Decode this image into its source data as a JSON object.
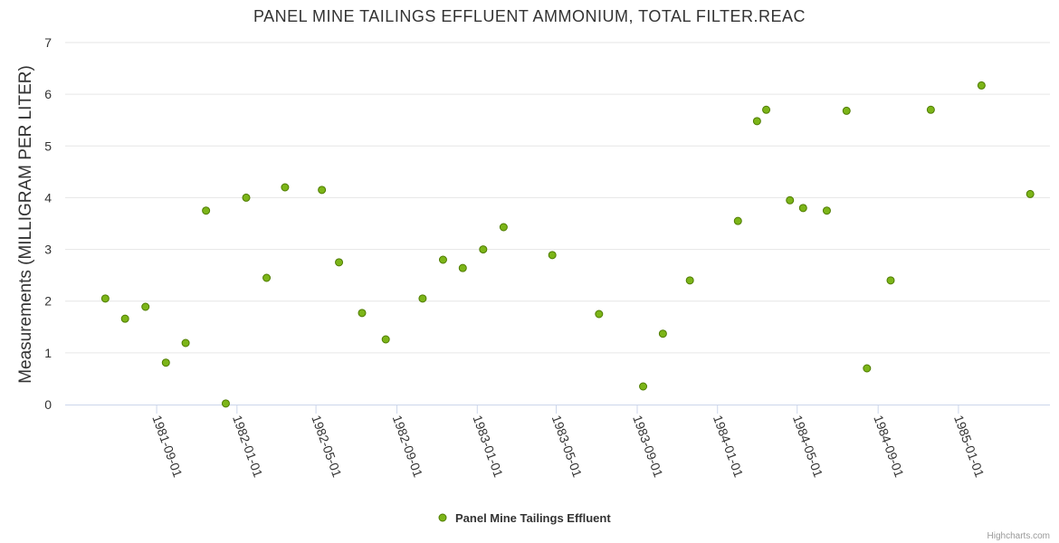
{
  "chart_data": {
    "type": "scatter",
    "title": "PANEL MINE TAILINGS EFFLUENT AMMONIUM, TOTAL FILTER.REAC",
    "xlabel": "",
    "ylabel": "Measurements (MILLIGRAM PER LITER)",
    "ylim": [
      0,
      7
    ],
    "yticks": [
      0,
      1,
      2,
      3,
      4,
      5,
      6,
      7
    ],
    "xlim": [
      "1981-04-15",
      "1985-05-20"
    ],
    "xticks": [
      "1981-09-01",
      "1982-01-01",
      "1982-05-01",
      "1982-09-01",
      "1983-01-01",
      "1983-05-01",
      "1983-09-01",
      "1984-01-01",
      "1984-05-01",
      "1984-09-01",
      "1985-01-01"
    ],
    "grid": true,
    "legend_position": "bottom",
    "series": [
      {
        "name": "Panel Mine Tailings Effluent",
        "color": "#7cb518",
        "points": [
          {
            "x": "1981-06-15",
            "y": 2.05
          },
          {
            "x": "1981-07-15",
            "y": 1.66
          },
          {
            "x": "1981-08-15",
            "y": 1.89
          },
          {
            "x": "1981-09-15",
            "y": 0.81
          },
          {
            "x": "1981-10-15",
            "y": 1.19
          },
          {
            "x": "1981-11-15",
            "y": 3.75
          },
          {
            "x": "1981-12-15",
            "y": 0.02
          },
          {
            "x": "1982-01-15",
            "y": 4.0
          },
          {
            "x": "1982-02-15",
            "y": 2.45
          },
          {
            "x": "1982-03-15",
            "y": 4.2
          },
          {
            "x": "1982-05-10",
            "y": 4.15
          },
          {
            "x": "1982-06-05",
            "y": 2.75
          },
          {
            "x": "1982-07-10",
            "y": 1.77
          },
          {
            "x": "1982-08-15",
            "y": 1.26
          },
          {
            "x": "1982-10-10",
            "y": 2.05
          },
          {
            "x": "1982-11-10",
            "y": 2.8
          },
          {
            "x": "1982-12-10",
            "y": 2.64
          },
          {
            "x": "1983-01-10",
            "y": 3.0
          },
          {
            "x": "1983-02-10",
            "y": 3.43
          },
          {
            "x": "1983-04-25",
            "y": 2.89
          },
          {
            "x": "1983-07-05",
            "y": 1.75
          },
          {
            "x": "1983-09-10",
            "y": 0.35
          },
          {
            "x": "1983-10-10",
            "y": 1.37
          },
          {
            "x": "1983-11-20",
            "y": 2.4
          },
          {
            "x": "1984-02-01",
            "y": 3.55
          },
          {
            "x": "1984-03-01",
            "y": 5.48
          },
          {
            "x": "1984-03-15",
            "y": 5.7
          },
          {
            "x": "1984-04-20",
            "y": 3.95
          },
          {
            "x": "1984-05-10",
            "y": 3.8
          },
          {
            "x": "1984-06-15",
            "y": 3.75
          },
          {
            "x": "1984-07-15",
            "y": 5.68
          },
          {
            "x": "1984-08-15",
            "y": 0.7
          },
          {
            "x": "1984-09-20",
            "y": 2.4
          },
          {
            "x": "1984-11-20",
            "y": 5.7
          },
          {
            "x": "1985-02-05",
            "y": 6.17
          },
          {
            "x": "1985-04-20",
            "y": 4.07
          }
        ]
      }
    ]
  },
  "credits": "Highcharts.com"
}
